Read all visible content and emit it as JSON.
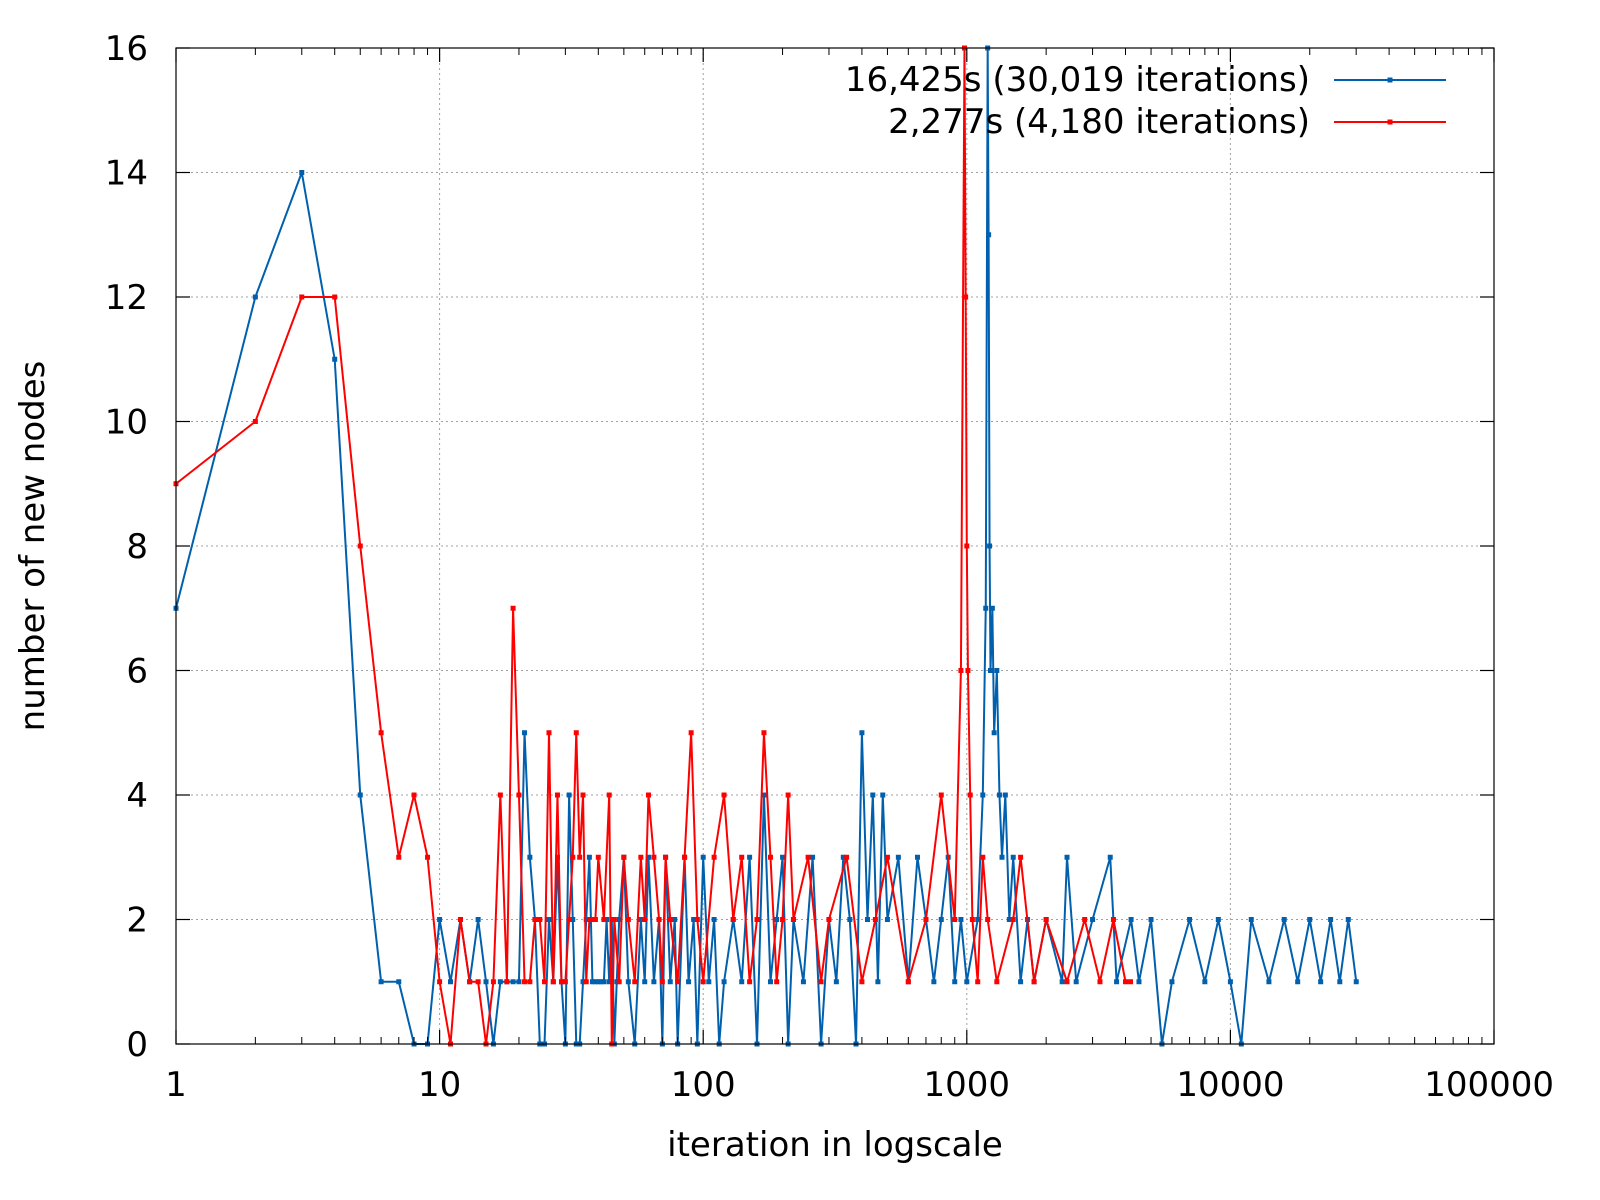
{
  "chart_data": {
    "type": "line",
    "title": "",
    "xlabel": "iteration in logscale",
    "ylabel": "number of new nodes",
    "x_scale": "log",
    "xlim": [
      1,
      100000
    ],
    "ylim": [
      0,
      16
    ],
    "x_ticks": [
      "1",
      "10",
      "100",
      "1000",
      "10000",
      "100000"
    ],
    "y_ticks": [
      "0",
      "2",
      "4",
      "6",
      "8",
      "10",
      "12",
      "14",
      "16"
    ],
    "grid": true,
    "legend_position": "top-right",
    "series": [
      {
        "name": "16,425s (30,019 iterations)",
        "color": "#0060ad",
        "points": [
          [
            1,
            7
          ],
          [
            2,
            12
          ],
          [
            3,
            14
          ],
          [
            4,
            11
          ],
          [
            5,
            4
          ],
          [
            6,
            1
          ],
          [
            7,
            1
          ],
          [
            8,
            0
          ],
          [
            9,
            0
          ],
          [
            10,
            2
          ],
          [
            11,
            1
          ],
          [
            12,
            2
          ],
          [
            13,
            1
          ],
          [
            14,
            2
          ],
          [
            15,
            1
          ],
          [
            16,
            0
          ],
          [
            17,
            1
          ],
          [
            18,
            1
          ],
          [
            19,
            1
          ],
          [
            20,
            1
          ],
          [
            21,
            5
          ],
          [
            22,
            3
          ],
          [
            23,
            2
          ],
          [
            24,
            0
          ],
          [
            25,
            0
          ],
          [
            26,
            2
          ],
          [
            27,
            1
          ],
          [
            28,
            3
          ],
          [
            29,
            1
          ],
          [
            30,
            0
          ],
          [
            31,
            4
          ],
          [
            32,
            2
          ],
          [
            33,
            0
          ],
          [
            34,
            0
          ],
          [
            35,
            1
          ],
          [
            36,
            2
          ],
          [
            37,
            3
          ],
          [
            38,
            1
          ],
          [
            39,
            1
          ],
          [
            40,
            1
          ],
          [
            41,
            1
          ],
          [
            42,
            1
          ],
          [
            43,
            2
          ],
          [
            44,
            1
          ],
          [
            45,
            2
          ],
          [
            46,
            0
          ],
          [
            47,
            1
          ],
          [
            48,
            2
          ],
          [
            50,
            3
          ],
          [
            52,
            1
          ],
          [
            55,
            0
          ],
          [
            58,
            2
          ],
          [
            60,
            1
          ],
          [
            62,
            3
          ],
          [
            65,
            1
          ],
          [
            68,
            2
          ],
          [
            70,
            0
          ],
          [
            72,
            3
          ],
          [
            75,
            1
          ],
          [
            78,
            2
          ],
          [
            80,
            0
          ],
          [
            85,
            3
          ],
          [
            88,
            1
          ],
          [
            92,
            2
          ],
          [
            95,
            0
          ],
          [
            100,
            3
          ],
          [
            105,
            1
          ],
          [
            110,
            2
          ],
          [
            115,
            0
          ],
          [
            120,
            1
          ],
          [
            130,
            2
          ],
          [
            140,
            1
          ],
          [
            150,
            3
          ],
          [
            160,
            0
          ],
          [
            170,
            4
          ],
          [
            180,
            1
          ],
          [
            190,
            2
          ],
          [
            200,
            3
          ],
          [
            210,
            0
          ],
          [
            220,
            2
          ],
          [
            240,
            1
          ],
          [
            260,
            3
          ],
          [
            280,
            0
          ],
          [
            300,
            2
          ],
          [
            320,
            1
          ],
          [
            340,
            3
          ],
          [
            360,
            2
          ],
          [
            380,
            0
          ],
          [
            400,
            5
          ],
          [
            420,
            2
          ],
          [
            440,
            4
          ],
          [
            460,
            1
          ],
          [
            480,
            4
          ],
          [
            500,
            2
          ],
          [
            550,
            3
          ],
          [
            600,
            1
          ],
          [
            650,
            3
          ],
          [
            700,
            2
          ],
          [
            750,
            1
          ],
          [
            800,
            2
          ],
          [
            850,
            3
          ],
          [
            900,
            1
          ],
          [
            950,
            2
          ],
          [
            1000,
            1
          ],
          [
            1100,
            2
          ],
          [
            1150,
            4
          ],
          [
            1180,
            7
          ],
          [
            1200,
            16
          ],
          [
            1210,
            13
          ],
          [
            1220,
            8
          ],
          [
            1230,
            6
          ],
          [
            1250,
            7
          ],
          [
            1270,
            5
          ],
          [
            1300,
            6
          ],
          [
            1330,
            4
          ],
          [
            1360,
            3
          ],
          [
            1400,
            4
          ],
          [
            1450,
            2
          ],
          [
            1500,
            3
          ],
          [
            1600,
            1
          ],
          [
            1700,
            2
          ],
          [
            1800,
            1
          ],
          [
            2000,
            2
          ],
          [
            2300,
            1
          ],
          [
            2400,
            3
          ],
          [
            2600,
            1
          ],
          [
            3000,
            2
          ],
          [
            3500,
            3
          ],
          [
            3700,
            1
          ],
          [
            4200,
            2
          ],
          [
            4500,
            1
          ],
          [
            5000,
            2
          ],
          [
            5500,
            0
          ],
          [
            6000,
            1
          ],
          [
            7000,
            2
          ],
          [
            8000,
            1
          ],
          [
            9000,
            2
          ],
          [
            10000,
            1
          ],
          [
            11000,
            0
          ],
          [
            12000,
            2
          ],
          [
            14000,
            1
          ],
          [
            16000,
            2
          ],
          [
            18000,
            1
          ],
          [
            20000,
            2
          ],
          [
            22000,
            1
          ],
          [
            24000,
            2
          ],
          [
            26000,
            1
          ],
          [
            28000,
            2
          ],
          [
            30019,
            1
          ]
        ]
      },
      {
        "name": "2,277s (4,180 iterations)",
        "color": "#ff0000",
        "points": [
          [
            1,
            9
          ],
          [
            2,
            10
          ],
          [
            3,
            12
          ],
          [
            4,
            12
          ],
          [
            5,
            8
          ],
          [
            6,
            5
          ],
          [
            7,
            3
          ],
          [
            8,
            4
          ],
          [
            9,
            3
          ],
          [
            10,
            1
          ],
          [
            11,
            0
          ],
          [
            12,
            2
          ],
          [
            13,
            1
          ],
          [
            14,
            1
          ],
          [
            15,
            0
          ],
          [
            16,
            1
          ],
          [
            17,
            4
          ],
          [
            18,
            1
          ],
          [
            19,
            7
          ],
          [
            20,
            4
          ],
          [
            21,
            1
          ],
          [
            22,
            1
          ],
          [
            23,
            2
          ],
          [
            24,
            2
          ],
          [
            25,
            1
          ],
          [
            26,
            5
          ],
          [
            27,
            1
          ],
          [
            28,
            4
          ],
          [
            29,
            1
          ],
          [
            30,
            1
          ],
          [
            31,
            2
          ],
          [
            32,
            3
          ],
          [
            33,
            5
          ],
          [
            34,
            3
          ],
          [
            35,
            4
          ],
          [
            36,
            1
          ],
          [
            37,
            2
          ],
          [
            38,
            2
          ],
          [
            39,
            2
          ],
          [
            40,
            3
          ],
          [
            42,
            2
          ],
          [
            44,
            4
          ],
          [
            45,
            0
          ],
          [
            46,
            2
          ],
          [
            48,
            1
          ],
          [
            50,
            3
          ],
          [
            52,
            2
          ],
          [
            55,
            1
          ],
          [
            58,
            3
          ],
          [
            60,
            2
          ],
          [
            62,
            4
          ],
          [
            65,
            3
          ],
          [
            68,
            2
          ],
          [
            70,
            1
          ],
          [
            72,
            3
          ],
          [
            75,
            2
          ],
          [
            80,
            1
          ],
          [
            85,
            3
          ],
          [
            90,
            5
          ],
          [
            95,
            2
          ],
          [
            100,
            1
          ],
          [
            110,
            3
          ],
          [
            120,
            4
          ],
          [
            130,
            2
          ],
          [
            140,
            3
          ],
          [
            150,
            1
          ],
          [
            160,
            2
          ],
          [
            170,
            5
          ],
          [
            180,
            3
          ],
          [
            190,
            1
          ],
          [
            200,
            2
          ],
          [
            210,
            4
          ],
          [
            220,
            2
          ],
          [
            250,
            3
          ],
          [
            280,
            1
          ],
          [
            300,
            2
          ],
          [
            350,
            3
          ],
          [
            400,
            1
          ],
          [
            450,
            2
          ],
          [
            500,
            3
          ],
          [
            600,
            1
          ],
          [
            700,
            2
          ],
          [
            800,
            4
          ],
          [
            900,
            2
          ],
          [
            950,
            6
          ],
          [
            980,
            16
          ],
          [
            990,
            12
          ],
          [
            1000,
            8
          ],
          [
            1010,
            6
          ],
          [
            1030,
            4
          ],
          [
            1050,
            2
          ],
          [
            1100,
            1
          ],
          [
            1150,
            3
          ],
          [
            1200,
            2
          ],
          [
            1300,
            1
          ],
          [
            1500,
            2
          ],
          [
            1600,
            3
          ],
          [
            1800,
            1
          ],
          [
            2000,
            2
          ],
          [
            2400,
            1
          ],
          [
            2800,
            2
          ],
          [
            3200,
            1
          ],
          [
            3600,
            2
          ],
          [
            4000,
            1
          ],
          [
            4180,
            1
          ]
        ]
      }
    ]
  }
}
